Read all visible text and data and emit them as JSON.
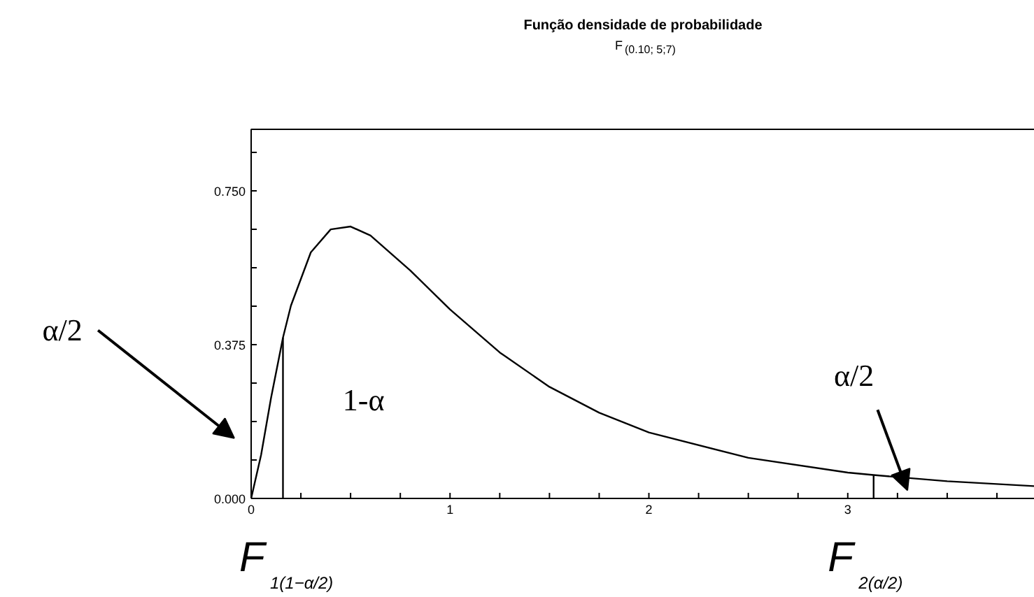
{
  "chart_data": {
    "type": "line",
    "title": "Função densidade de probabilidade",
    "subtitle": "F$_{(0.10; 5;7)}$",
    "series": [
      {
        "color": "#000000",
        "x": [
          0,
          0.05,
          0.1,
          0.16,
          0.2,
          0.3,
          0.4,
          0.5,
          0.6,
          0.8,
          1.0,
          1.25,
          1.5,
          1.75,
          2.0,
          2.5,
          3.0,
          3.13,
          3.5,
          3.94
        ],
        "values": [
          0,
          0.106,
          0.245,
          0.392,
          0.47,
          0.6,
          0.656,
          0.663,
          0.641,
          0.556,
          0.461,
          0.356,
          0.272,
          0.209,
          0.161,
          0.099,
          0.063,
          0.057,
          0.042,
          0.03
        ]
      },
      {
        "color": "#000000",
        "x": [
          0.16,
          0.16
        ],
        "values": [
          0,
          0.392
        ]
      },
      {
        "color": "#000000",
        "x": [
          3.13,
          3.13
        ],
        "values": [
          0,
          0.057
        ]
      }
    ],
    "xlim": [
      0,
      3.94
    ],
    "ylim": [
      0,
      0.9
    ],
    "xticks": [
      0,
      {
        "value": 0.25,
        "label": null
      },
      {
        "value": 0.5,
        "label": null
      },
      {
        "value": 0.75,
        "label": null
      },
      1,
      {
        "value": 1.25,
        "label": null
      },
      {
        "value": 1.5,
        "label": null
      },
      {
        "value": 1.75,
        "label": null
      },
      2,
      {
        "value": 2.25,
        "label": null
      },
      {
        "value": 2.5,
        "label": null
      },
      {
        "value": 2.75,
        "label": null
      },
      3,
      {
        "value": 3.25,
        "label": null
      },
      {
        "value": 3.5,
        "label": null
      },
      {
        "value": 3.75,
        "label": null
      }
    ],
    "yticks": [
      {
        "value": 0,
        "label": "0.000"
      },
      {
        "value": 0.09375,
        "label": null
      },
      {
        "value": 0.1875,
        "label": null
      },
      {
        "value": 0.28125,
        "label": null
      },
      {
        "value": 0.375,
        "label": "0.375"
      },
      {
        "value": 0.46875,
        "label": null
      },
      {
        "value": 0.5625,
        "label": null
      },
      {
        "value": 0.65625,
        "label": null
      },
      {
        "value": 0.75,
        "label": "0.750"
      },
      {
        "value": 0.84375,
        "label": null
      }
    ],
    "grid": false,
    "line_style": "solid",
    "marker": "none",
    "annotations": [
      "α/2",
      "1-α",
      "α/2",
      "F$_{1(1−α/2)}$",
      "F$_{2(α/2)}$"
    ]
  }
}
